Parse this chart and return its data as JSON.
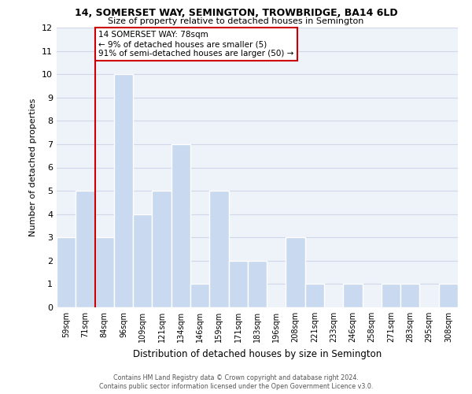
{
  "title1": "14, SOMERSET WAY, SEMINGTON, TROWBRIDGE, BA14 6LD",
  "title2": "Size of property relative to detached houses in Semington",
  "xlabel": "Distribution of detached houses by size in Semington",
  "ylabel": "Number of detached properties",
  "categories": [
    "59sqm",
    "71sqm",
    "84sqm",
    "96sqm",
    "109sqm",
    "121sqm",
    "134sqm",
    "146sqm",
    "159sqm",
    "171sqm",
    "183sqm",
    "196sqm",
    "208sqm",
    "221sqm",
    "233sqm",
    "246sqm",
    "258sqm",
    "271sqm",
    "283sqm",
    "295sqm",
    "308sqm"
  ],
  "values": [
    3,
    5,
    3,
    10,
    4,
    5,
    7,
    1,
    5,
    2,
    2,
    0,
    3,
    1,
    0,
    1,
    0,
    1,
    1,
    0,
    1
  ],
  "bar_color": "#c9d9ef",
  "bar_edge_color": "#ffffff",
  "ref_line_x": 1.5,
  "annotation_text": "14 SOMERSET WAY: 78sqm\n← 9% of detached houses are smaller (5)\n91% of semi-detached houses are larger (50) →",
  "annotation_box_color": "#ffffff",
  "annotation_box_edge_color": "#cc0000",
  "ref_line_color": "#cc0000",
  "grid_color": "#d0d8e8",
  "ylim": [
    0,
    12
  ],
  "yticks": [
    0,
    1,
    2,
    3,
    4,
    5,
    6,
    7,
    8,
    9,
    10,
    11,
    12
  ],
  "footer1": "Contains HM Land Registry data © Crown copyright and database right 2024.",
  "footer2": "Contains public sector information licensed under the Open Government Licence v3.0.",
  "background_color": "#eef2f9"
}
